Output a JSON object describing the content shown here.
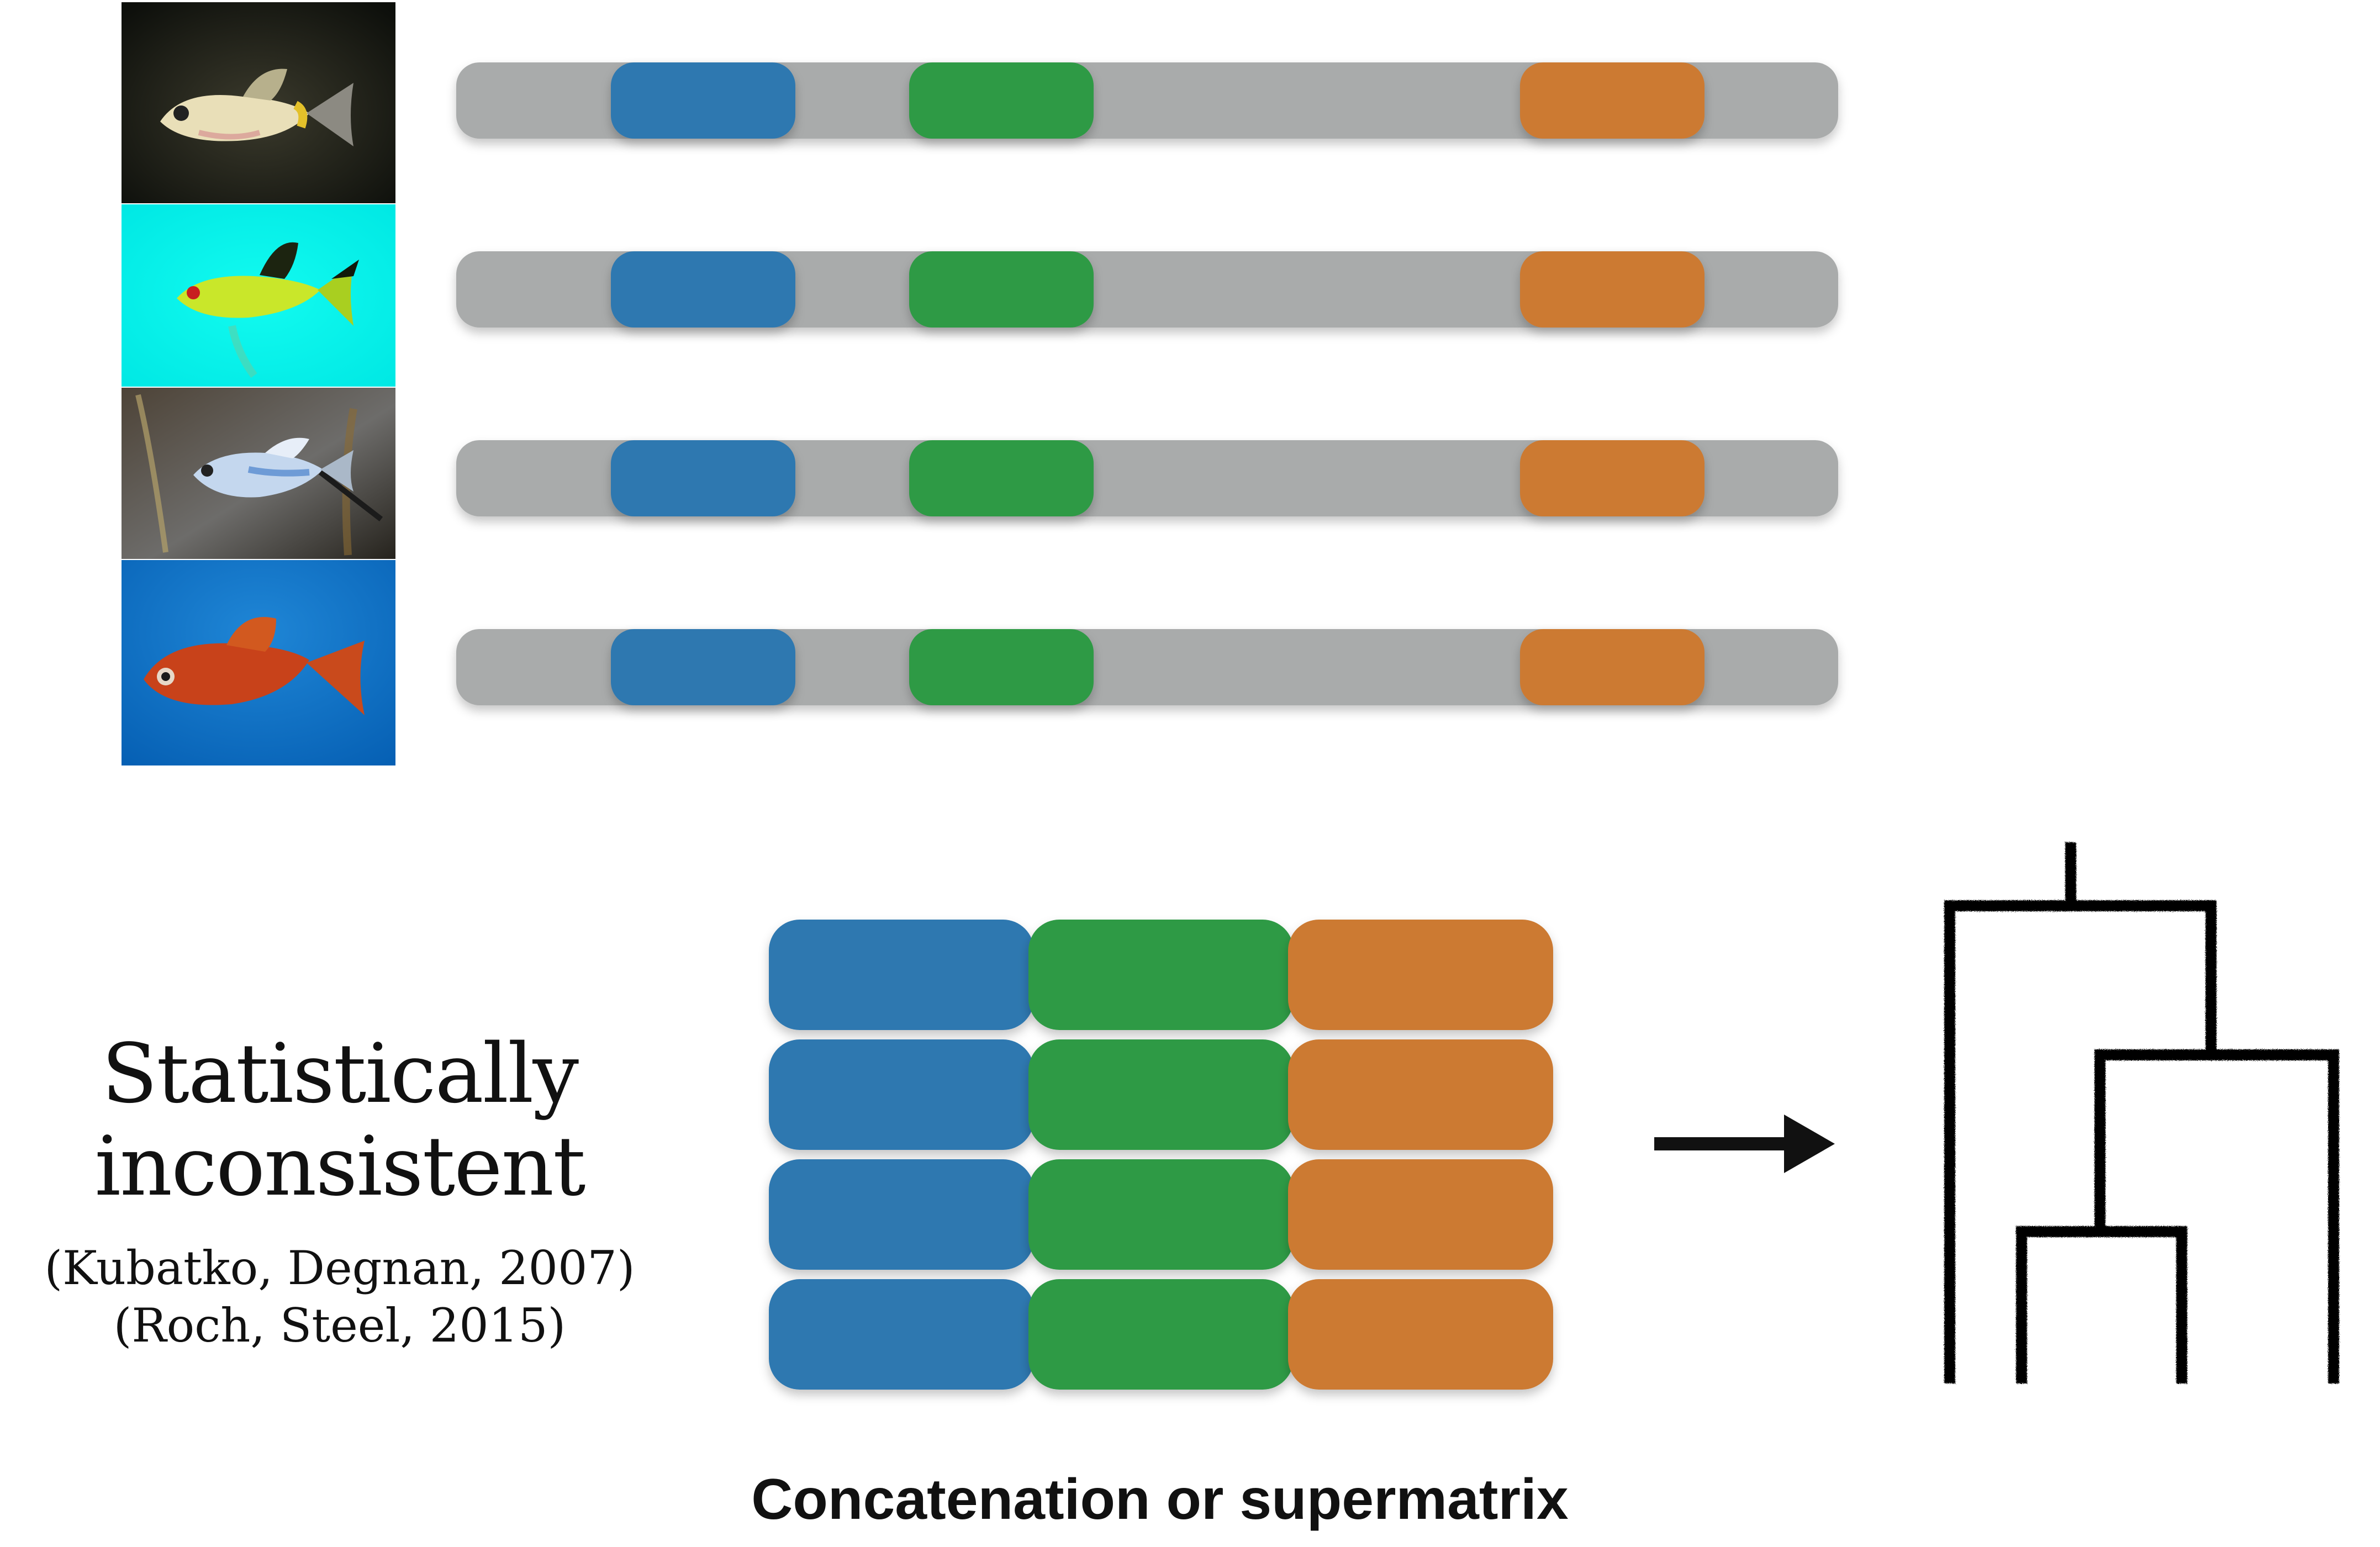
{
  "colors": {
    "background": "#ffffff",
    "bar_gray": "#a9abab",
    "gene_blue": "#2e78b0",
    "gene_green": "#2f9a44",
    "gene_orange": "#cc7a31",
    "ink": "#111111"
  },
  "icons": {
    "species_photos": [
      "fish-photo-pale-platyfish",
      "fish-photo-neon-green-swordtail",
      "fish-photo-silver-blue-swordtail",
      "fish-photo-red-platy"
    ],
    "arrow": "right-arrow-icon",
    "tree": "phylogenetic-tree-icon"
  },
  "labels": {
    "statistically_inconsistent": "Statistically\ninconsistent",
    "citations": [
      "(Kubatko, Degnan, 2007)",
      "(Roch, Steel, 2015)"
    ],
    "caption": "Concatenation or supermatrix"
  }
}
